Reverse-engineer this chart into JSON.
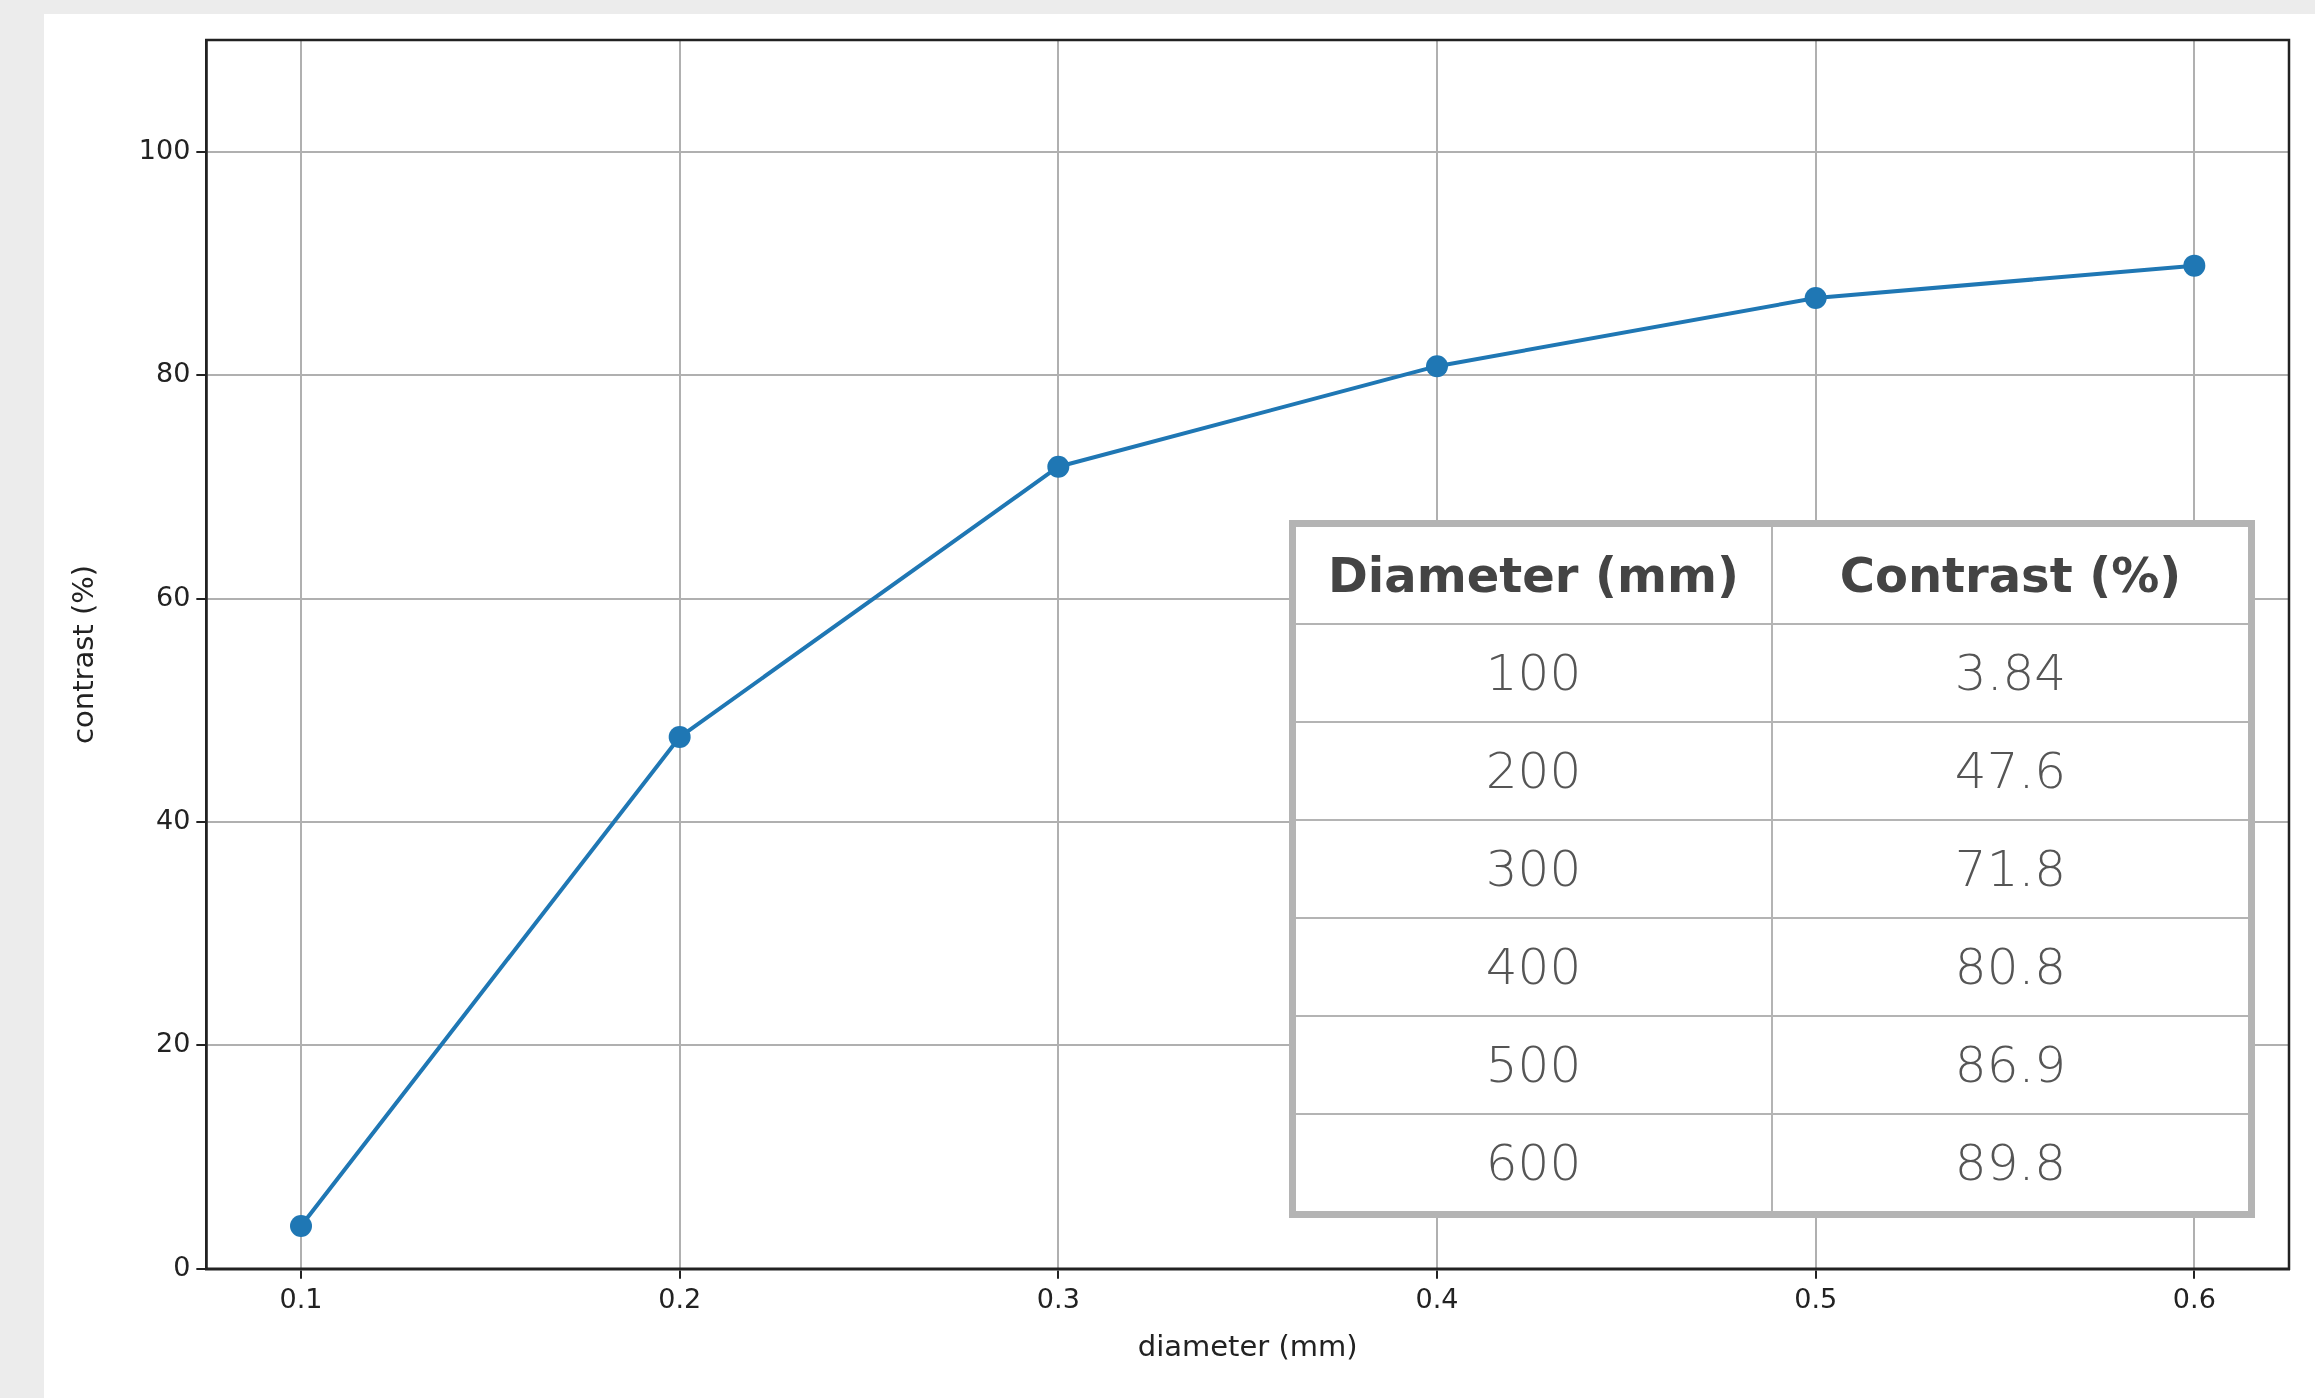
{
  "chart_data": {
    "type": "line",
    "xlabel": "diameter (mm)",
    "ylabel": "contrast (%)",
    "x": [
      0.1,
      0.2,
      0.3,
      0.4,
      0.5,
      0.6
    ],
    "series": [
      {
        "color": "#1f77b4",
        "values": [
          3.84,
          47.6,
          71.8,
          80.8,
          86.9,
          89.8
        ]
      }
    ],
    "xlim": [
      0.075,
      0.625
    ],
    "xticks": [
      0.1,
      0.2,
      0.3,
      0.4,
      0.5,
      0.6
    ],
    "ylim": [
      0,
      110
    ],
    "yticks": [
      0,
      20,
      40,
      60,
      80,
      100
    ],
    "grid": true,
    "legend": false,
    "marker": "circle",
    "line_style": "solid",
    "annotations": [
      "Diameter (mm)",
      "Contrast (%)",
      "100",
      "3.84",
      "200",
      "47.6",
      "300",
      "71.8",
      "400",
      "80.8",
      "500",
      "86.9",
      "600",
      "89.8"
    ]
  }
}
